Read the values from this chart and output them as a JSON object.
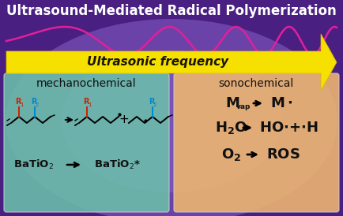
{
  "title": "Ultrasound-Mediated Radical Polymerization",
  "bg_color": "#4a1f82",
  "bg_center_color": "#6a4aaa",
  "title_color": "#ffffff",
  "wave_color": "#e0209a",
  "arrow_freq_color": "#f5e000",
  "arrow_freq_edge": "#d4b800",
  "arrow_freq_text": "Ultrasonic frequency",
  "left_box_color": "#6bbfaa",
  "right_box_color": "#f0b870",
  "left_title": "mechanochemical",
  "right_title": "sonochemical",
  "R1_color": "#cc2200",
  "R2_color": "#0088cc",
  "batio2_text1": "BaTiO$_2$",
  "batio2_text2": "BaTiO$_2$*",
  "figsize": [
    4.34,
    2.74
  ],
  "dpi": 100
}
